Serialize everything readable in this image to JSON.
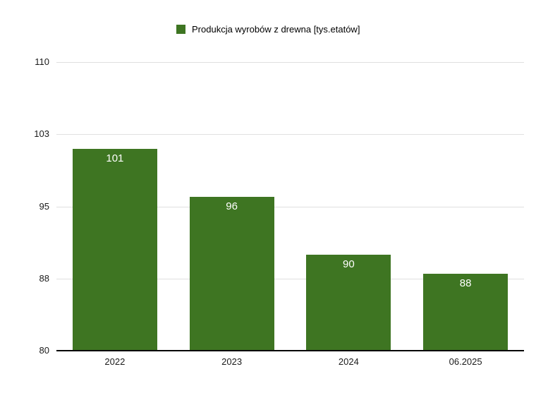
{
  "chart_data": {
    "type": "bar",
    "title": "",
    "legend": "Produkcja wyrobów z drewna [tys.etatów]",
    "legend_position": "top",
    "categories": [
      "2022",
      "2023",
      "2024",
      "06.2025"
    ],
    "values": [
      101,
      96,
      90,
      88
    ],
    "value_labels": [
      "101",
      "96",
      "90",
      "88"
    ],
    "xlabel": "",
    "ylabel": "",
    "ylim": [
      80,
      110
    ],
    "yticks": [
      {
        "label": "80",
        "value": 80
      },
      {
        "label": "88",
        "value": 87.5
      },
      {
        "label": "95",
        "value": 95
      },
      {
        "label": "103",
        "value": 102.5
      },
      {
        "label": "110",
        "value": 110
      }
    ],
    "grid": true,
    "colors": {
      "bar": "#3e7522",
      "bar_label": "#ffffff",
      "grid_line": "#e0e0e0",
      "axis_line": "#000000",
      "tick_text": "#1a1a1a",
      "background": "#ffffff"
    }
  }
}
